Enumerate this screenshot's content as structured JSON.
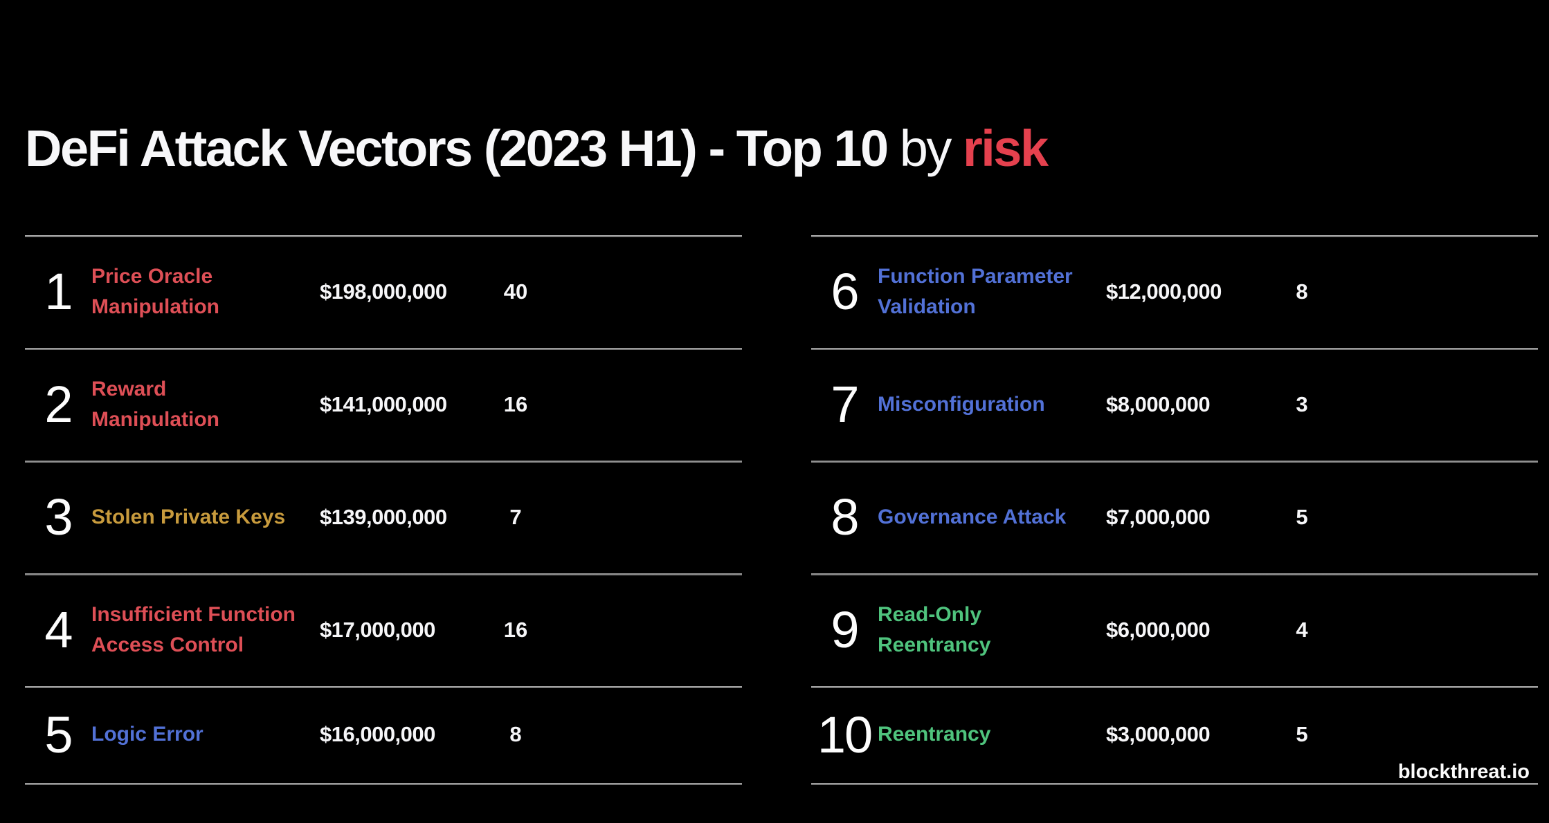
{
  "title": {
    "main": "DeFi Attack Vectors (2023 H1) - Top 10",
    "connector": " by ",
    "highlight": "risk"
  },
  "watermark": "blockthreat.io",
  "colors": {
    "background": "#000000",
    "text_white": "#f6f6f8",
    "title_highlight_red": "#e5414e",
    "vector_red": "#de4f56",
    "vector_gold": "#c89b3d",
    "vector_blue": "#5271d6",
    "vector_green": "#4fc37d",
    "divider_gray": "#8f8f8f"
  },
  "rows": [
    {
      "rank": "1",
      "name": "Price Oracle\nManipulation",
      "amount": "$198,000,000",
      "count": "40",
      "color": "#de4f56"
    },
    {
      "rank": "2",
      "name": "Reward\nManipulation",
      "amount": "$141,000,000",
      "count": "16",
      "color": "#de4f56"
    },
    {
      "rank": "3",
      "name": "Stolen Private Keys",
      "amount": "$139,000,000",
      "count": "7",
      "color": "#c89b3d"
    },
    {
      "rank": "4",
      "name": "Insufficient Function\nAccess Control",
      "amount": "$17,000,000",
      "count": "16",
      "color": "#de4f56"
    },
    {
      "rank": "5",
      "name": "Logic Error",
      "amount": "$16,000,000",
      "count": "8",
      "color": "#5271d6"
    },
    {
      "rank": "6",
      "name": "Function Parameter\nValidation",
      "amount": "$12,000,000",
      "count": "8",
      "color": "#5271d6"
    },
    {
      "rank": "7",
      "name": "Misconfiguration",
      "amount": "$8,000,000",
      "count": "3",
      "color": "#5271d6"
    },
    {
      "rank": "8",
      "name": "Governance Attack",
      "amount": "$7,000,000",
      "count": "5",
      "color": "#5271d6"
    },
    {
      "rank": "9",
      "name": "Read-Only\nReentrancy",
      "amount": "$6,000,000",
      "count": "4",
      "color": "#4fc37d"
    },
    {
      "rank": "10",
      "name": "Reentrancy",
      "amount": "$3,000,000",
      "count": "5",
      "color": "#4fc37d"
    }
  ],
  "chart_data": {
    "type": "table",
    "title": "DeFi Attack Vectors (2023 H1) - Top 10 by risk",
    "columns": [
      "rank",
      "attack_vector",
      "losses_usd",
      "incidents"
    ],
    "rows": [
      [
        1,
        "Price Oracle Manipulation",
        198000000,
        40
      ],
      [
        2,
        "Reward Manipulation",
        141000000,
        16
      ],
      [
        3,
        "Stolen Private Keys",
        139000000,
        7
      ],
      [
        4,
        "Insufficient Function Access Control",
        17000000,
        16
      ],
      [
        5,
        "Logic Error",
        16000000,
        8
      ],
      [
        6,
        "Function Parameter Validation",
        12000000,
        8
      ],
      [
        7,
        "Misconfiguration",
        8000000,
        3
      ],
      [
        8,
        "Governance Attack",
        7000000,
        5
      ],
      [
        9,
        "Read-Only Reentrancy",
        6000000,
        4
      ],
      [
        10,
        "Reentrancy",
        3000000,
        5
      ]
    ],
    "color_groups": {
      "red_high_risk": [
        "Price Oracle Manipulation",
        "Reward Manipulation",
        "Insufficient Function Access Control"
      ],
      "gold": [
        "Stolen Private Keys"
      ],
      "blue": [
        "Logic Error",
        "Function Parameter Validation",
        "Misconfiguration",
        "Governance Attack"
      ],
      "green": [
        "Read-Only Reentrancy",
        "Reentrancy"
      ]
    },
    "source": "blockthreat.io",
    "layout": "two-column ranked list, ranks 1-5 left, 6-10 right"
  }
}
